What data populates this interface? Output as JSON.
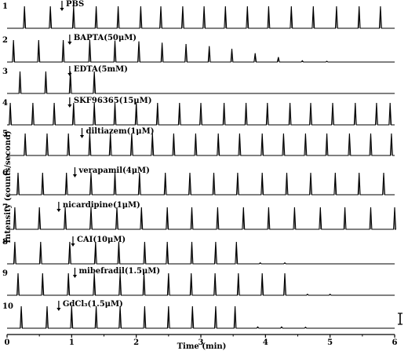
{
  "chart_data": {
    "type": "line",
    "xlabel": "Time (min)",
    "ylabel": "Intensity (counts/second)",
    "xlim": [
      0,
      6
    ],
    "x_ticks": [
      "0",
      "1",
      "2",
      "3",
      "4",
      "5",
      "6"
    ],
    "grid": false,
    "scale_bar": true,
    "panels": [
      {
        "number": "1",
        "treatment": "PBS",
        "arrow_time": 0.85,
        "peak_times": [
          0.27,
          0.67,
          1.03,
          1.38,
          1.72,
          2.07,
          2.38,
          2.72,
          3.05,
          3.38,
          3.72,
          4.05,
          4.4,
          4.74,
          5.1,
          5.45,
          5.78
        ],
        "peak_heights": [
          1,
          1,
          1,
          1,
          1,
          1,
          1,
          1,
          1,
          1,
          1,
          1,
          1,
          1,
          1,
          1,
          1
        ]
      },
      {
        "number": "2",
        "treatment": "BAPTA(50μM)",
        "arrow_time": 0.97,
        "peak_times": [
          0.1,
          0.49,
          0.87,
          1.28,
          1.67,
          2.04,
          2.4,
          2.77,
          3.13,
          3.48,
          3.84,
          4.2,
          4.57,
          4.95
        ],
        "peak_heights": [
          1,
          1,
          1,
          1,
          0.98,
          0.94,
          0.88,
          0.82,
          0.72,
          0.6,
          0.4,
          0.22,
          0.06,
          0.04
        ]
      },
      {
        "number": "3",
        "treatment": "EDTA(5mM)",
        "arrow_time": 0.97,
        "peak_times": [
          0.2,
          0.6,
          0.98,
          1.35
        ],
        "peak_heights": [
          1,
          1,
          1,
          1
        ]
      },
      {
        "number": "4",
        "treatment": "SKF96365(15μM)",
        "arrow_time": 0.97,
        "peak_times": [
          0.05,
          0.4,
          0.73,
          1.03,
          1.35,
          1.67,
          2.0,
          2.33,
          2.67,
          3.0,
          3.36,
          3.7,
          4.03,
          4.38,
          4.7,
          5.04,
          5.39,
          5.72,
          5.93
        ],
        "peak_heights": [
          1,
          1,
          1,
          1,
          1,
          1,
          1,
          1,
          1,
          1,
          1,
          1,
          1,
          1,
          1,
          1,
          1,
          1,
          1
        ]
      },
      {
        "number": "5",
        "treatment": "diltiazem(1μM)",
        "arrow_time": 1.16,
        "peak_times": [
          0.28,
          0.62,
          0.95,
          1.28,
          1.6,
          1.93,
          2.25,
          2.58,
          2.92,
          3.27,
          3.6,
          3.95,
          4.28,
          4.62,
          4.95,
          5.3,
          5.63,
          5.95
        ],
        "peak_heights": [
          1,
          1,
          1,
          1,
          1,
          1,
          1,
          1,
          1,
          1,
          1,
          1,
          1,
          1,
          1,
          1,
          1,
          1
        ]
      },
      {
        "number": "6",
        "treatment": "verapamil(4μM)",
        "arrow_time": 1.05,
        "peak_times": [
          0.17,
          0.55,
          0.92,
          1.3,
          1.67,
          2.05,
          2.45,
          2.83,
          3.2,
          3.57,
          3.95,
          4.33,
          4.7,
          5.08,
          5.45,
          5.83
        ],
        "peak_heights": [
          1,
          1,
          1,
          1,
          1,
          1,
          1,
          1,
          1,
          1,
          1,
          1,
          1,
          1,
          1,
          1
        ]
      },
      {
        "number": "7",
        "treatment": "nicardipine(1μM)",
        "arrow_time": 0.8,
        "peak_times": [
          0.12,
          0.5,
          0.9,
          1.3,
          1.7,
          2.08,
          2.48,
          2.86,
          3.26,
          3.66,
          4.05,
          4.45,
          4.85,
          5.23,
          5.63,
          6.0
        ],
        "peak_heights": [
          1,
          1,
          1,
          1,
          1,
          1,
          1,
          1,
          1,
          1,
          1,
          1,
          1,
          1,
          1,
          1
        ]
      },
      {
        "number": "8",
        "treatment": "CAI(10μM)",
        "arrow_time": 1.02,
        "peak_times": [
          0.12,
          0.52,
          0.97,
          1.37,
          1.73,
          2.13,
          2.48,
          2.86,
          3.23,
          3.55,
          3.92,
          4.3
        ],
        "peak_heights": [
          1,
          1,
          1,
          1,
          1,
          1,
          1,
          1,
          1,
          1,
          0.05,
          0.05
        ]
      },
      {
        "number": "9",
        "treatment": "mibefradil(1.5μM)",
        "arrow_time": 1.05,
        "peak_times": [
          0.17,
          0.55,
          0.95,
          1.35,
          1.75,
          2.12,
          2.5,
          2.85,
          3.22,
          3.58,
          3.95,
          4.3,
          4.65,
          5.0
        ],
        "peak_heights": [
          1,
          1,
          1,
          1,
          1,
          1,
          1,
          1,
          1,
          1,
          1,
          1,
          0.05,
          0.05
        ]
      },
      {
        "number": "10",
        "treatment": "GdCl₃(1.5μM)",
        "arrow_time": 0.8,
        "peak_times": [
          0.22,
          0.62,
          1.0,
          1.38,
          1.75,
          2.13,
          2.5,
          2.87,
          3.23,
          3.53,
          3.88,
          4.25,
          4.62
        ],
        "peak_heights": [
          1,
          1,
          1,
          1,
          1,
          1,
          1,
          1,
          1,
          1,
          0.06,
          0.06,
          0.05
        ]
      }
    ]
  }
}
